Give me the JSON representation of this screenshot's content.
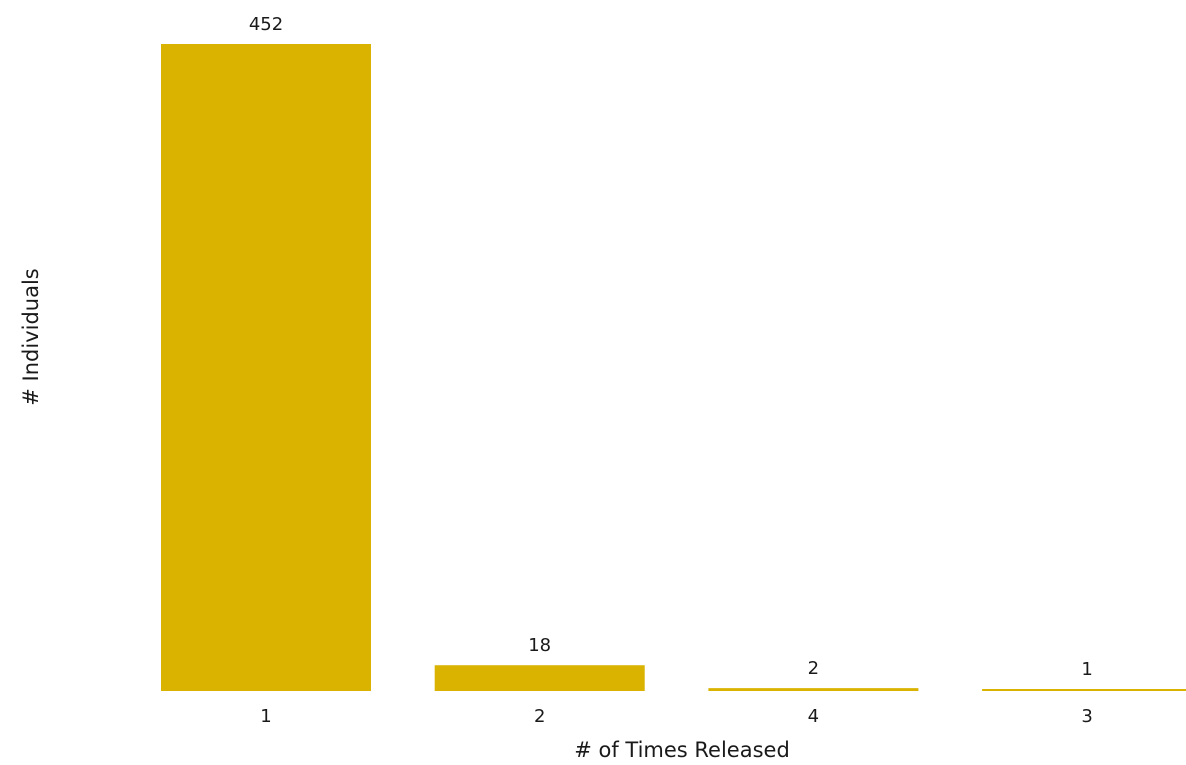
{
  "chart_data": {
    "type": "bar",
    "categories": [
      "1",
      "2",
      "4",
      "3"
    ],
    "values": [
      452,
      18,
      2,
      1
    ],
    "title": "",
    "xlabel": "# of Times Released",
    "ylabel": "# Individuals",
    "ylim": [
      0,
      452
    ],
    "grid": false,
    "legend": "none",
    "bar_color": "#D9B300",
    "show_data_labels": true
  }
}
